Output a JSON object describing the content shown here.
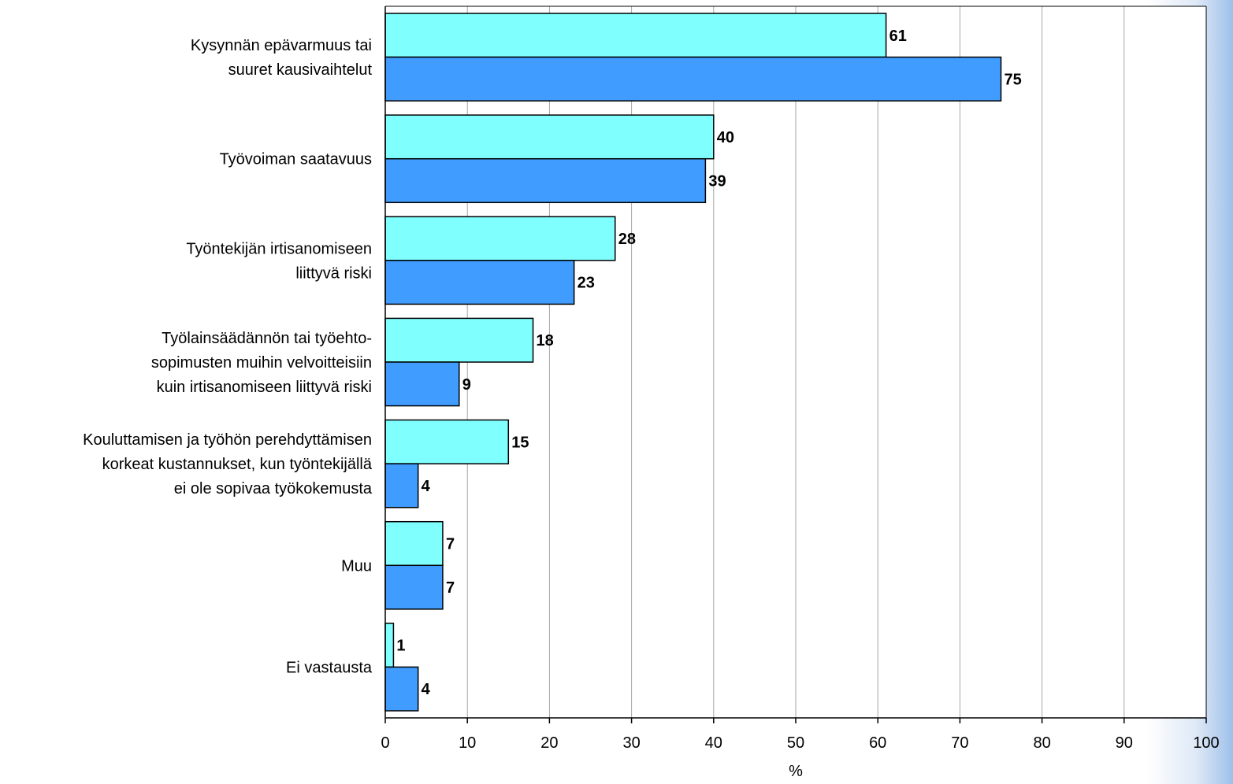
{
  "chart_data": {
    "type": "bar",
    "orientation": "horizontal",
    "categories": [
      [
        "Kysynnän epävarmuus tai",
        "suuret kausivaihtelut"
      ],
      [
        "Työvoiman saatavuus"
      ],
      [
        "Työntekijän irtisanomiseen",
        "liittyvä riski"
      ],
      [
        "Työlainsäädännön tai työehto-",
        "sopimusten muihin velvoitteisiin",
        "kuin irtisanomiseen liittyvä riski"
      ],
      [
        "Kouluttamisen ja työhön perehdyttämisen",
        "korkeat kustannukset, kun työntekijällä",
        "ei ole sopivaa työkokemusta"
      ],
      [
        "Muu"
      ],
      [
        "Ei vastausta"
      ]
    ],
    "series": [
      {
        "values": [
          61,
          40,
          28,
          18,
          15,
          7,
          1
        ],
        "color": "#80ffff"
      },
      {
        "values": [
          75,
          39,
          23,
          9,
          4,
          7,
          4
        ],
        "color": "#409dff"
      }
    ],
    "xlim": [
      0,
      100
    ],
    "xticks": [
      0,
      10,
      20,
      30,
      40,
      50,
      60,
      70,
      80,
      90,
      100
    ],
    "xlabel": "%",
    "grid": true,
    "gridline_color": "#a6a6a6",
    "legend": "none"
  }
}
